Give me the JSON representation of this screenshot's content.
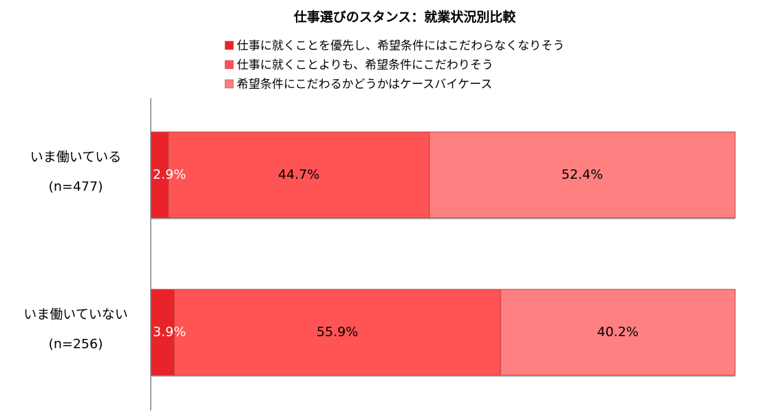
{
  "chart_data": {
    "type": "bar",
    "orientation": "horizontal",
    "stacked": true,
    "percent_stacked": true,
    "title": "仕事選びのスタンス：就業状況別比較",
    "categories": [
      {
        "label": "いま働いている",
        "n_label": "(n=477)"
      },
      {
        "label": "いま働いていない",
        "n_label": "(n=256)"
      }
    ],
    "series": [
      {
        "name": "仕事に就くことを優先し、希望条件にはこだわらなくなりそう",
        "values": [
          2.9,
          3.9
        ],
        "labels": [
          "2.9%",
          "3.9%"
        ],
        "color": "#e8242a",
        "label_color": "#ffffff"
      },
      {
        "name": "仕事に就くことよりも、希望条件にこだわりそう",
        "values": [
          44.7,
          55.9
        ],
        "labels": [
          "44.7%",
          "55.9%"
        ],
        "color": "#ff5454",
        "label_color": "#000000"
      },
      {
        "name": "希望条件にこだわるかどうかはケースバイケース",
        "values": [
          52.4,
          40.2
        ],
        "labels": [
          "52.4%",
          "40.2%"
        ],
        "color": "#ff8080",
        "label_color": "#000000"
      }
    ],
    "xlim": [
      0,
      100
    ],
    "grid": false,
    "legend_position": "top"
  }
}
